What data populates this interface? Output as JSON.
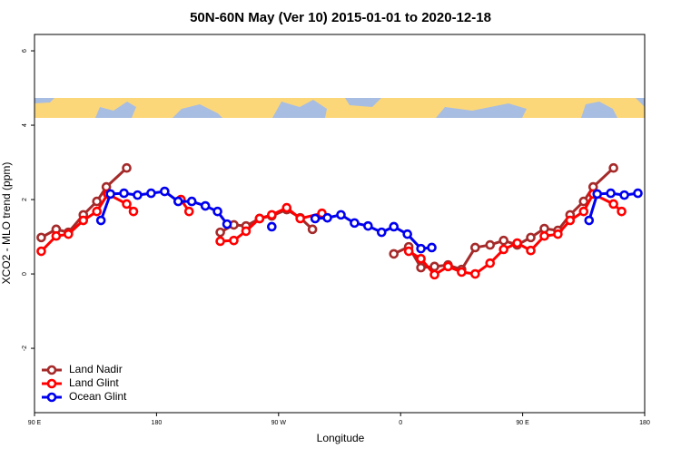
{
  "chart_data": {
    "type": "line",
    "title": "50N-60N May (Ver 10)   2015-01-01 to 2020-12-18",
    "x_label": "Longitude",
    "y_label": "XCO2 - MLO trend (ppm)",
    "xlim": [
      90,
      540
    ],
    "ylim": [
      -3.73,
      6.44
    ],
    "xticks": [
      {
        "value": 90,
        "label": "90 E"
      },
      {
        "value": 180,
        "label": "180"
      },
      {
        "value": 270,
        "label": "90 W"
      },
      {
        "value": 360,
        "label": "0"
      },
      {
        "value": 450,
        "label": "90 E"
      },
      {
        "value": 540,
        "label": "180"
      }
    ],
    "yticks": [
      -2,
      0,
      2,
      4,
      6
    ],
    "legend": "bottomleft",
    "series": [
      {
        "name": "Land Nadir",
        "color": "#a52a2a",
        "x": [
          95,
          106,
          115,
          126,
          136,
          143,
          158,
          null,
          227,
          237,
          246,
          256,
          265,
          276,
          286,
          295,
          null,
          355,
          366,
          375,
          385,
          395,
          405,
          415,
          426,
          436,
          446,
          456,
          466,
          476,
          485,
          495,
          502,
          517
        ],
        "values": [
          0.98,
          1.2,
          1.12,
          1.59,
          1.95,
          2.34,
          2.85,
          null,
          1.12,
          1.32,
          1.29,
          1.49,
          1.56,
          1.73,
          1.51,
          1.2,
          null,
          0.54,
          0.73,
          0.17,
          0.2,
          0.24,
          0.12,
          0.71,
          0.78,
          0.9,
          0.78,
          0.98,
          1.22,
          1.17,
          1.59,
          1.95,
          2.34,
          2.85
        ]
      },
      {
        "name": "Land Glint",
        "color": "#ff0000",
        "x": [
          95,
          106,
          115,
          126,
          136,
          144,
          158,
          163,
          null,
          198,
          204,
          null,
          227,
          237,
          246,
          256,
          265,
          276,
          286,
          302,
          null,
          366,
          375,
          385,
          395,
          405,
          415,
          426,
          436,
          446,
          456,
          466,
          476,
          485,
          495,
          502,
          517,
          523
        ],
        "values": [
          0.61,
          1.02,
          1.07,
          1.44,
          1.68,
          2.15,
          1.88,
          1.68,
          null,
          2.0,
          1.68,
          null,
          0.88,
          0.9,
          1.15,
          1.49,
          1.59,
          1.78,
          1.49,
          1.63,
          null,
          0.61,
          0.41,
          -0.02,
          0.2,
          0.05,
          0.0,
          0.29,
          0.66,
          0.83,
          0.63,
          1.02,
          1.07,
          1.44,
          1.68,
          2.15,
          1.88,
          1.68
        ]
      },
      {
        "name": "Ocean Glint",
        "color": "#0000ee",
        "x": [
          139,
          146,
          156,
          166,
          176,
          186,
          196,
          206,
          216,
          225,
          232,
          null,
          265,
          null,
          297,
          306,
          316,
          326,
          336,
          346,
          355,
          365,
          375,
          383,
          null,
          499,
          505,
          515,
          525,
          535
        ],
        "values": [
          1.44,
          2.15,
          2.17,
          2.12,
          2.17,
          2.22,
          1.95,
          1.95,
          1.83,
          1.68,
          1.34,
          null,
          1.27,
          null,
          1.49,
          1.51,
          1.59,
          1.37,
          1.29,
          1.12,
          1.27,
          1.07,
          0.68,
          0.71,
          null,
          1.44,
          2.15,
          2.17,
          2.12,
          2.17
        ]
      }
    ]
  }
}
